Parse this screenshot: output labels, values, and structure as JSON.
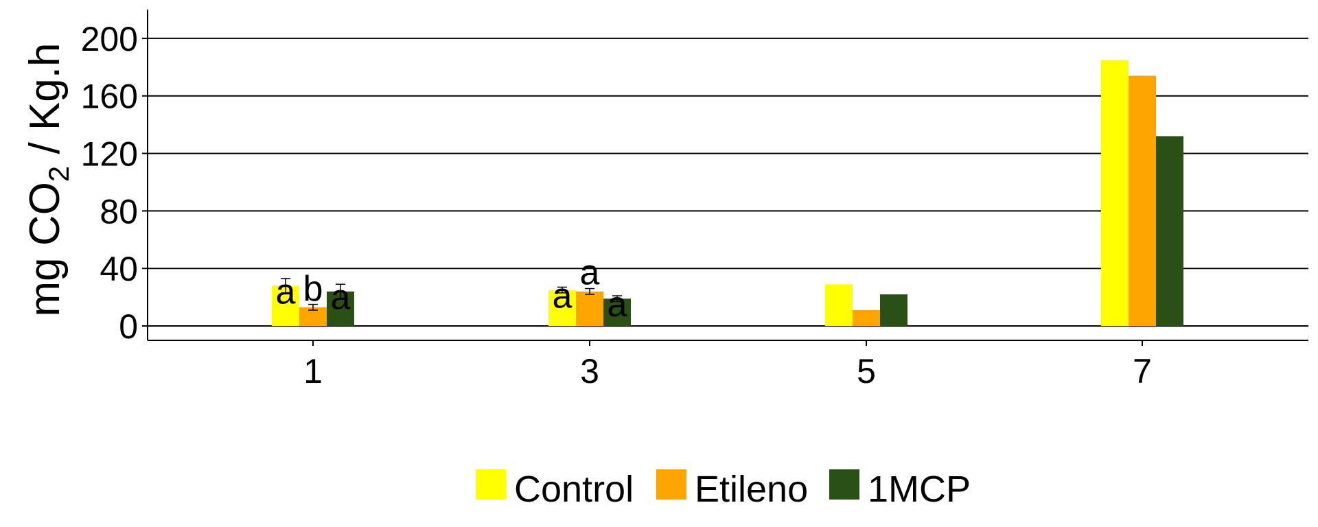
{
  "chart_data": {
    "type": "bar",
    "title": "",
    "xlabel": "",
    "ylabel": "mg CO2 / Kg.h",
    "ylabel_parts": {
      "pre": "mg CO",
      "sub": "2",
      "post": " / Kg.h"
    },
    "categories": [
      "1",
      "3",
      "5",
      "7"
    ],
    "ylim": [
      -10,
      220
    ],
    "yticks": [
      0,
      40,
      80,
      120,
      160,
      200
    ],
    "grid": "horizontal major",
    "legend_position": "bottom",
    "series": [
      {
        "name": "Control",
        "color": "#FFFF00",
        "values": [
          28,
          25,
          29,
          185
        ],
        "errors": [
          5,
          2,
          null,
          null
        ],
        "letters": [
          "a",
          "a",
          "",
          ""
        ]
      },
      {
        "name": "Etileno",
        "color": "#FFA500",
        "values": [
          13,
          24,
          11,
          174
        ],
        "errors": [
          2,
          2,
          null,
          null
        ],
        "letters": [
          "b",
          "a",
          "",
          ""
        ]
      },
      {
        "name": "1MCP",
        "color": "#2B5016",
        "values": [
          24,
          19,
          22,
          132
        ],
        "errors": [
          5,
          2,
          null,
          null
        ],
        "letters": [
          "a",
          "a",
          "",
          ""
        ]
      }
    ]
  }
}
